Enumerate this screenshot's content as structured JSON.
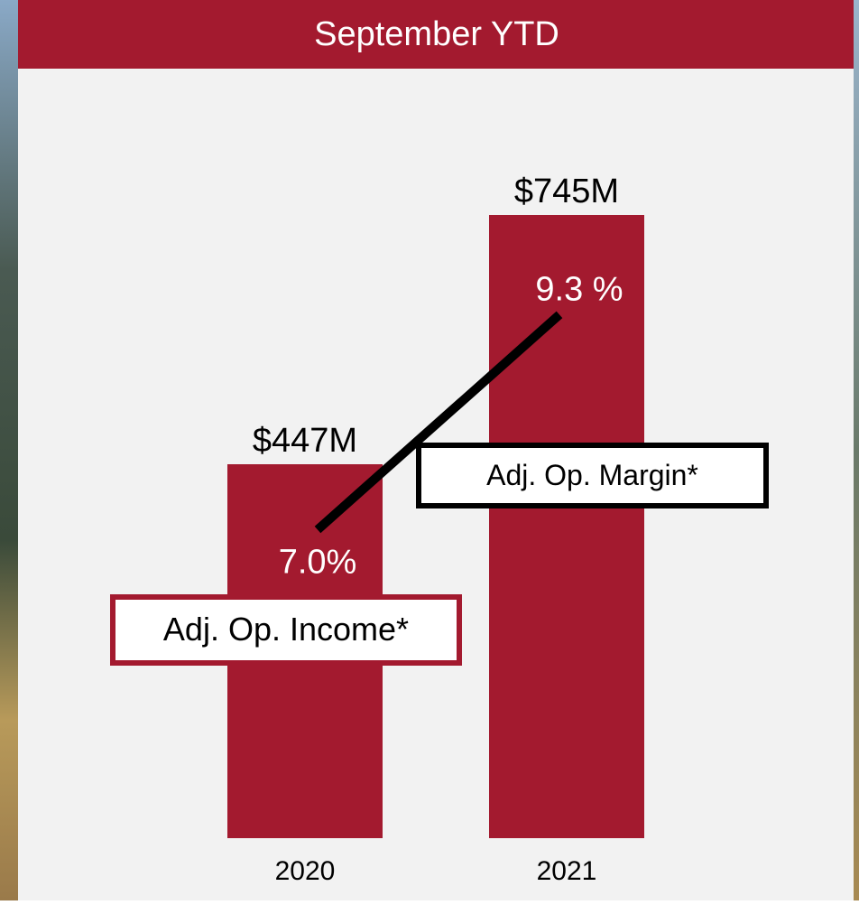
{
  "chart_data": {
    "type": "bar",
    "title": "September YTD",
    "categories": [
      "2020",
      "2021"
    ],
    "series": [
      {
        "name": "Adj. Op. Income*",
        "type": "bar",
        "color": "#a31a2f",
        "values": [
          447,
          745
        ],
        "value_labels": [
          "$447M",
          "$745M"
        ]
      },
      {
        "name": "Adj. Op. Margin*",
        "type": "line",
        "axis": "y2",
        "color": "#000000",
        "values": [
          7.0,
          9.3
        ],
        "value_labels": [
          "7.0%",
          "9.3 %"
        ]
      }
    ],
    "ylim": [
      0,
      894
    ],
    "y2lim": [
      3.7,
      11.7
    ]
  }
}
